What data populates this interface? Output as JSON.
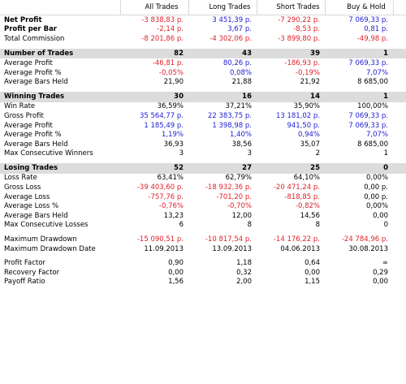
{
  "columns": [
    "All Trades",
    "Long Trades",
    "Short Trades",
    "Buy & Hold"
  ],
  "rows": [
    {
      "label": "Net Profit",
      "bold": true,
      "values": [
        "-3 838,83 p.",
        "3 451,39 p.",
        "-7 290,22 p.",
        "7 069,33 p."
      ],
      "colors": [
        "neg",
        "pos",
        "neg",
        "pos"
      ]
    },
    {
      "label": "Profit per Bar",
      "bold": true,
      "values": [
        "-2,14 p.",
        "3,67 p.",
        "-8,53 p.",
        "0,81 p."
      ],
      "colors": [
        "neg",
        "pos",
        "neg",
        "pos"
      ]
    },
    {
      "label": "Total Commission",
      "values": [
        "-8 201,86 p.",
        "-4 302,06 p.",
        "-3 899,80 p.",
        "-49,98 p."
      ],
      "colors": [
        "neg",
        "neg",
        "neg",
        "neg"
      ]
    },
    {
      "spacer": true
    },
    {
      "label": "Number of Trades",
      "section": true,
      "values": [
        "82",
        "43",
        "39",
        "1"
      ]
    },
    {
      "label": "Average Profit",
      "values": [
        "-46,81 p.",
        "80,26 p.",
        "-186,93 p.",
        "7 069,33 p."
      ],
      "colors": [
        "neg",
        "pos",
        "neg",
        "pos"
      ]
    },
    {
      "label": "Average Profit %",
      "values": [
        "-0,05%",
        "0,08%",
        "-0,19%",
        "7,07%"
      ],
      "colors": [
        "neg",
        "pos",
        "neg",
        "pos"
      ]
    },
    {
      "label": "Average Bars Held",
      "values": [
        "21,90",
        "21,88",
        "21,92",
        "8 685,00"
      ]
    },
    {
      "spacer": true
    },
    {
      "label": "Winning Trades",
      "section": true,
      "values": [
        "30",
        "16",
        "14",
        "1"
      ]
    },
    {
      "label": "Win Rate",
      "values": [
        "36,59%",
        "37,21%",
        "35,90%",
        "100,00%"
      ]
    },
    {
      "label": "Gross Profit",
      "values": [
        "35 564,77 p.",
        "22 383,75 p.",
        "13 181,02 p.",
        "7 069,33 p."
      ],
      "colors": [
        "pos",
        "pos",
        "pos",
        "pos"
      ]
    },
    {
      "label": "Average Profit",
      "values": [
        "1 185,49 p.",
        "1 398,98 p.",
        "941,50 p.",
        "7 069,33 p."
      ],
      "colors": [
        "pos",
        "pos",
        "pos",
        "pos"
      ]
    },
    {
      "label": "Average Profit %",
      "values": [
        "1,19%",
        "1,40%",
        "0,94%",
        "7,07%"
      ],
      "colors": [
        "pos",
        "pos",
        "pos",
        "pos"
      ]
    },
    {
      "label": "Average Bars Held",
      "values": [
        "36,93",
        "38,56",
        "35,07",
        "8 685,00"
      ]
    },
    {
      "label": "Max Consecutive Winners",
      "values": [
        "3",
        "3",
        "2",
        "1"
      ]
    },
    {
      "spacer": true
    },
    {
      "label": "Losing Trades",
      "section": true,
      "values": [
        "52",
        "27",
        "25",
        "0"
      ]
    },
    {
      "label": "Loss Rate",
      "values": [
        "63,41%",
        "62,79%",
        "64,10%",
        "0,00%"
      ]
    },
    {
      "label": "Gross Loss",
      "values": [
        "-39 403,60 p.",
        "-18 932,36 p.",
        "-20 471,24 p.",
        "0,00 p."
      ],
      "colors": [
        "neg",
        "neg",
        "neg",
        ""
      ]
    },
    {
      "label": "Average Loss",
      "values": [
        "-757,76 p.",
        "-701,20 p.",
        "-818,85 p.",
        "0,00 p."
      ],
      "colors": [
        "neg",
        "neg",
        "neg",
        ""
      ]
    },
    {
      "label": "Average Loss %",
      "values": [
        "-0,76%",
        "-0,70%",
        "-0,82%",
        "0,00%"
      ],
      "colors": [
        "neg",
        "neg",
        "neg",
        ""
      ]
    },
    {
      "label": "Average Bars Held",
      "values": [
        "13,23",
        "12,00",
        "14,56",
        "0,00"
      ]
    },
    {
      "label": "Max Consecutive Losses",
      "values": [
        "6",
        "8",
        "8",
        "0"
      ]
    },
    {
      "spacer": true
    },
    {
      "label": "Maximum Drawdown",
      "values": [
        "-15 090,51 p.",
        "-10 817,54 p.",
        "-14 176,22 p.",
        "-24 784,96 p."
      ],
      "colors": [
        "neg",
        "neg",
        "neg",
        "neg"
      ]
    },
    {
      "label": "Maximum Drawdown Date",
      "values": [
        "11.09.2013",
        "13.09.2013",
        "04.06.2013",
        "30.08.2013"
      ]
    },
    {
      "spacer": true
    },
    {
      "label": "Profit Factor",
      "values": [
        "0,90",
        "1,18",
        "0,64",
        "∞"
      ]
    },
    {
      "label": "Recovery Factor",
      "values": [
        "0,00",
        "0,32",
        "0,00",
        "0,29"
      ]
    },
    {
      "label": "Payoff Ratio",
      "values": [
        "1,56",
        "2,00",
        "1,15",
        "0,00"
      ]
    }
  ]
}
